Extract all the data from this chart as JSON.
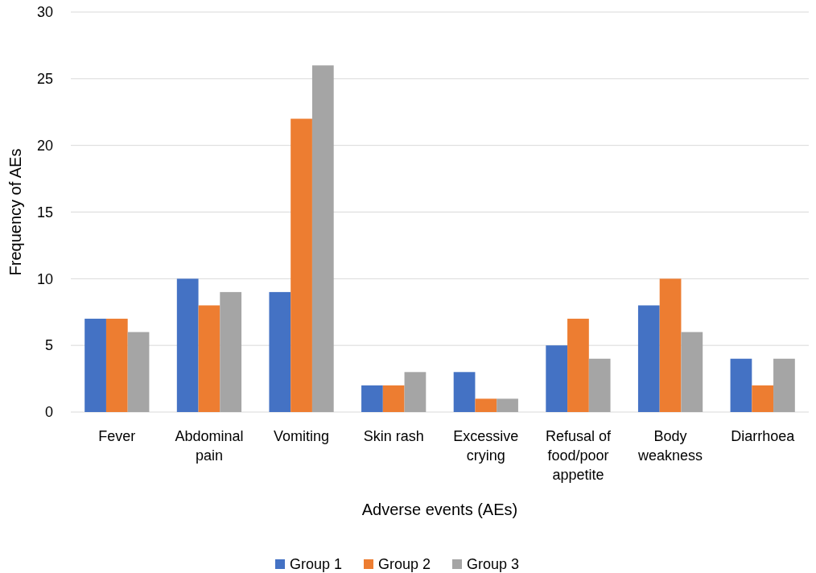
{
  "chart_data": {
    "type": "bar",
    "xlabel": "Adverse events (AEs)",
    "ylabel": "Frequency of AEs",
    "categories": [
      "Fever",
      "Abdominal pain",
      "Vomiting",
      "Skin rash",
      "Excessive crying",
      "Refusal of food/poor appetite",
      "Body weakness",
      "Diarrhoea"
    ],
    "series": [
      {
        "name": "Group 1",
        "color": "#4472c4",
        "values": [
          7,
          10,
          9,
          2,
          3,
          5,
          8,
          4
        ]
      },
      {
        "name": "Group 2",
        "color": "#ed7d31",
        "values": [
          7,
          8,
          22,
          2,
          1,
          7,
          10,
          2
        ]
      },
      {
        "name": "Group 3",
        "color": "#a5a5a5",
        "values": [
          6,
          9,
          26,
          3,
          1,
          4,
          6,
          4
        ]
      }
    ],
    "ylim": [
      0,
      30
    ],
    "yticks": [
      0,
      5,
      10,
      15,
      20,
      25,
      30
    ],
    "grid": "y",
    "legend": "bottom"
  }
}
